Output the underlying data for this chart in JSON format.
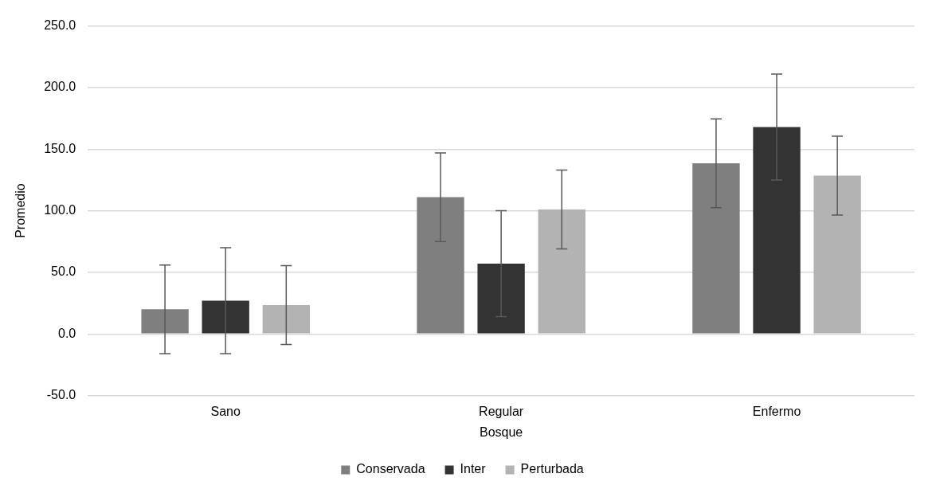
{
  "chart_data": {
    "type": "bar",
    "xlabel": "Bosque",
    "ylabel": "Promedio",
    "categories": [
      "Sano",
      "Regular",
      "Enfermo"
    ],
    "series": [
      {
        "name": "Conservada",
        "color": "#7f7f7f",
        "values": [
          20,
          111,
          138.5
        ],
        "errors": [
          36,
          36,
          36
        ]
      },
      {
        "name": "Inter",
        "color": "#333333",
        "values": [
          27,
          57,
          168
        ],
        "errors": [
          43,
          43,
          43
        ]
      },
      {
        "name": "Perturbada",
        "color": "#b3b3b3",
        "values": [
          23.5,
          101,
          128.5
        ],
        "errors": [
          32,
          32,
          32
        ]
      }
    ],
    "ylim": [
      -50,
      250
    ],
    "yticks": [
      {
        "value": -50,
        "label": "-50.0"
      },
      {
        "value": 0,
        "label": "0.0"
      },
      {
        "value": 50,
        "label": "50.0"
      },
      {
        "value": 100,
        "label": "100.0"
      },
      {
        "value": 150,
        "label": "150.0"
      },
      {
        "value": 200,
        "label": "200.0"
      },
      {
        "value": 250,
        "label": "250.0"
      }
    ],
    "grid": "y",
    "legend": "bottom"
  }
}
